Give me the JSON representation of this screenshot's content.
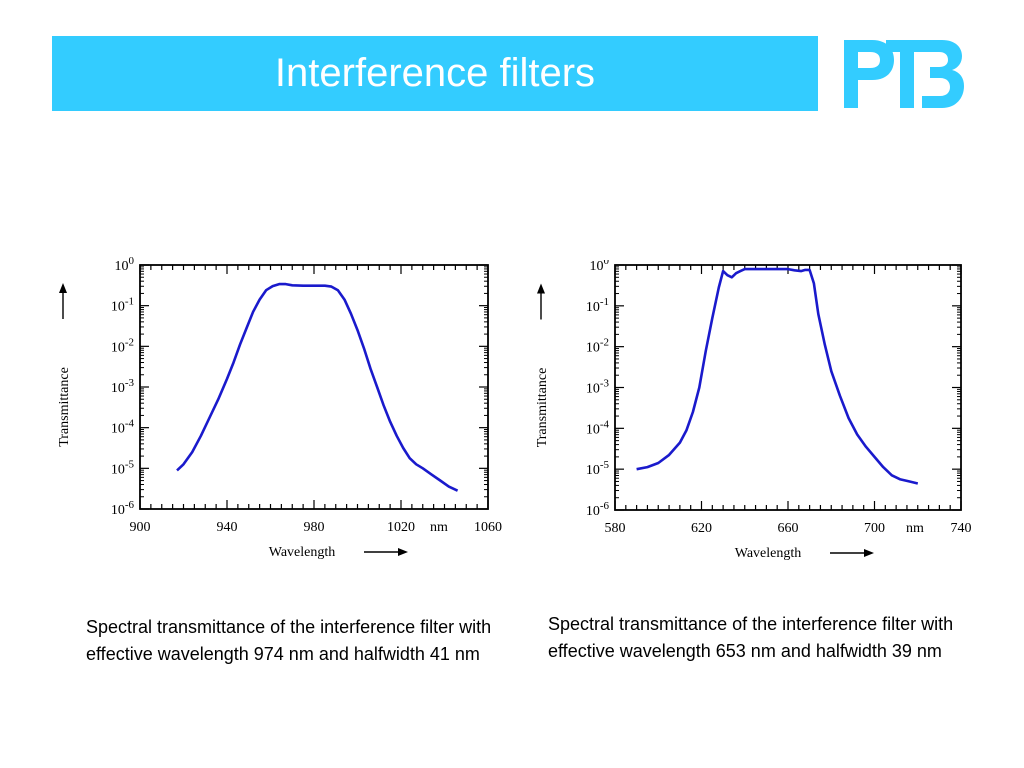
{
  "header": {
    "title": "Interference filters",
    "logo_text": "PTB",
    "bar_color": "#33ccff",
    "logo_color": "#33ccff"
  },
  "chart_data": [
    {
      "type": "line",
      "title": "",
      "xlabel": "Wavelength",
      "ylabel": "Transmittance",
      "x_unit": "nm",
      "yscale": "log",
      "xlim": [
        900,
        1060
      ],
      "ylim": [
        1e-06,
        1
      ],
      "x_ticks": [
        "900",
        "940",
        "980",
        "1020",
        "1060"
      ],
      "y_ticks": [
        {
          "base": "10",
          "exp": "0"
        },
        {
          "base": "10",
          "exp": "-1"
        },
        {
          "base": "10",
          "exp": "-2"
        },
        {
          "base": "10",
          "exp": "-3"
        },
        {
          "base": "10",
          "exp": "-4"
        },
        {
          "base": "10",
          "exp": "-5"
        },
        {
          "base": "10",
          "exp": "-6"
        }
      ],
      "line_color": "#1a1acc",
      "series": [
        {
          "x": [
            917,
            920,
            924,
            928,
            932,
            936,
            940,
            943,
            946,
            949,
            952,
            955,
            958,
            961,
            964,
            967,
            970,
            975,
            980,
            985,
            988,
            991,
            994,
            997,
            1000,
            1003,
            1006,
            1009,
            1012,
            1015,
            1018,
            1021,
            1024,
            1027,
            1030,
            1034,
            1038,
            1042,
            1046
          ],
          "y": [
            -5.05,
            -4.9,
            -4.6,
            -4.2,
            -3.75,
            -3.3,
            -2.8,
            -2.4,
            -1.95,
            -1.55,
            -1.15,
            -0.85,
            -0.62,
            -0.52,
            -0.47,
            -0.47,
            -0.5,
            -0.51,
            -0.51,
            -0.51,
            -0.53,
            -0.62,
            -0.85,
            -1.2,
            -1.6,
            -2.05,
            -2.55,
            -3.0,
            -3.45,
            -3.85,
            -4.2,
            -4.5,
            -4.75,
            -4.9,
            -5.0,
            -5.15,
            -5.3,
            -5.45,
            -5.55
          ]
        }
      ]
    },
    {
      "type": "line",
      "title": "",
      "xlabel": "Wavelength",
      "ylabel": "Transmittance",
      "x_unit": "nm",
      "yscale": "log",
      "xlim": [
        580,
        740
      ],
      "ylim": [
        1e-06,
        1
      ],
      "x_ticks": [
        "580",
        "620",
        "660",
        "700",
        "740"
      ],
      "y_ticks": [
        {
          "base": "10",
          "exp": "0"
        },
        {
          "base": "10",
          "exp": "-1"
        },
        {
          "base": "10",
          "exp": "-2"
        },
        {
          "base": "10",
          "exp": "-3"
        },
        {
          "base": "10",
          "exp": "-4"
        },
        {
          "base": "10",
          "exp": "-5"
        },
        {
          "base": "10",
          "exp": "-6"
        }
      ],
      "line_color": "#1a1acc",
      "series": [
        {
          "x": [
            590,
            595,
            600,
            605,
            610,
            613,
            616,
            619,
            622,
            625,
            628,
            630,
            632,
            634,
            636,
            638,
            640,
            645,
            650,
            655,
            660,
            663,
            666,
            668,
            670,
            672,
            674,
            677,
            680,
            684,
            688,
            692,
            696,
            700,
            704,
            708,
            712,
            716,
            720
          ],
          "y": [
            -5.0,
            -4.95,
            -4.85,
            -4.65,
            -4.35,
            -4.05,
            -3.6,
            -3.0,
            -2.1,
            -1.3,
            -0.55,
            -0.15,
            -0.25,
            -0.3,
            -0.2,
            -0.15,
            -0.1,
            -0.1,
            -0.1,
            -0.1,
            -0.1,
            -0.13,
            -0.15,
            -0.12,
            -0.12,
            -0.45,
            -1.2,
            -1.95,
            -2.6,
            -3.2,
            -3.75,
            -4.15,
            -4.45,
            -4.7,
            -4.95,
            -5.15,
            -5.25,
            -5.3,
            -5.35
          ]
        }
      ]
    }
  ],
  "captions": {
    "left": "Spectral transmittance of the interference filter with effective wavelength 974 nm and halfwidth 41 nm",
    "right": "Spectral transmittance of the interference filter with effective wavelength 653 nm and halfwidth 39 nm"
  }
}
